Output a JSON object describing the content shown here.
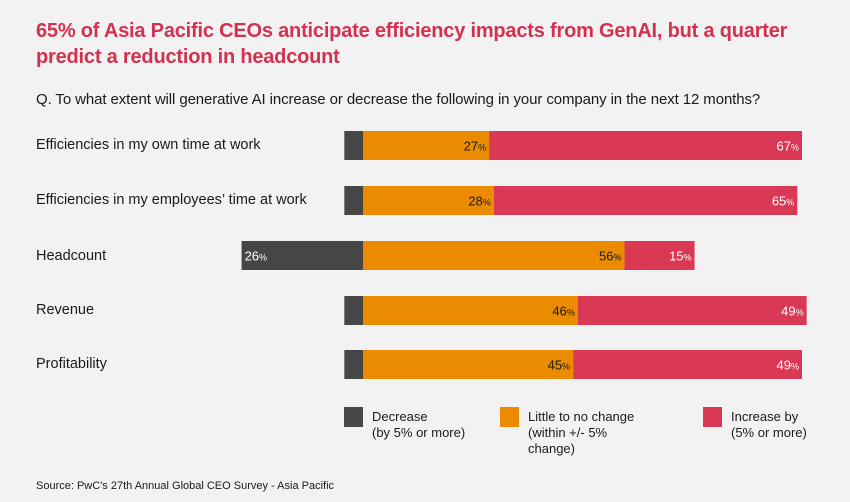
{
  "title": "65% of Asia Pacific CEOs anticipate efficiency impacts from GenAI, but a quarter predict a reduction in headcount",
  "question": "Q. To what extent will generative AI increase or decrease the following in your company in the next 12 months?",
  "source": "Source: PwC's 27th Annual Global CEO Survey - Asia Pacific",
  "colors": {
    "decrease": "#464646",
    "no_change": "#eb8c00",
    "increase": "#d93954"
  },
  "chart_data": {
    "type": "bar",
    "orientation": "horizontal",
    "stacked": "diverging",
    "title": "65% of Asia Pacific CEOs anticipate efficiency impacts from GenAI, but a quarter predict a reduction in headcount",
    "subtitle": "Q. To what extent will generative AI increase or decrease the following in your company in the next 12 months?",
    "categories": [
      "Efficiencies in my own time at work",
      "Efficiencies in my employees’ time at work",
      "Headcount",
      "Revenue",
      "Profitability"
    ],
    "series": [
      {
        "name": "Decrease (by 5% or more)",
        "key": "decrease",
        "values": [
          4,
          4,
          26,
          4,
          4
        ],
        "labels": [
          "",
          "",
          "26%",
          "",
          ""
        ]
      },
      {
        "name": "Little to no change (within +/- 5% change)",
        "key": "no_change",
        "values": [
          27,
          28,
          56,
          46,
          45
        ],
        "labels": [
          "27%",
          "28%",
          "56%",
          "46%",
          "45%"
        ]
      },
      {
        "name": "Increase by (5% or more)",
        "key": "increase",
        "values": [
          67,
          65,
          15,
          49,
          49
        ],
        "labels": [
          "67%",
          "65%",
          "15%",
          "49%",
          "49%"
        ]
      }
    ],
    "unit": "%",
    "grid": false,
    "legend_position": "bottom"
  },
  "legend": [
    {
      "key": "decrease",
      "label": "Decrease\n(by 5% or more)"
    },
    {
      "key": "no_change",
      "label": "Little to no change\n(within +/- 5%\nchange)"
    },
    {
      "key": "increase",
      "label": "Increase by\n(5% or more)"
    }
  ]
}
